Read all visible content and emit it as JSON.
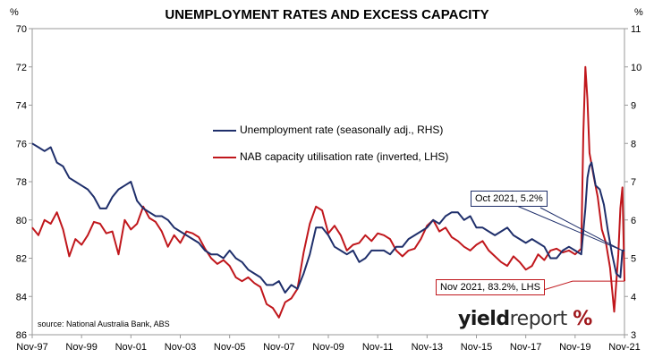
{
  "chart_data": {
    "type": "line",
    "title": "UNEMPLOYMENT RATES AND EXCESS CAPACITY",
    "left_unit": "%",
    "right_unit": "%",
    "source": "source: National Australia Bank, ABS",
    "brand": {
      "part1": "yield",
      "part2": "report",
      "symbol": "%"
    },
    "x_ticks": [
      "Nov-97",
      "Nov-99",
      "Nov-01",
      "Nov-03",
      "Nov-05",
      "Nov-07",
      "Nov-09",
      "Nov-11",
      "Nov-13",
      "Nov-15",
      "Nov-17",
      "Nov-19",
      "Nov-21"
    ],
    "x_range": [
      "1997-11",
      "2021-11"
    ],
    "left_axis": {
      "label": "%",
      "range": [
        70,
        86
      ],
      "inverted": true,
      "ticks": [
        "70",
        "72",
        "74",
        "76",
        "78",
        "80",
        "82",
        "84",
        "86"
      ]
    },
    "right_axis": {
      "label": "%",
      "range": [
        3,
        11
      ],
      "ticks": [
        "3",
        "4",
        "5",
        "6",
        "7",
        "8",
        "9",
        "10",
        "11"
      ]
    },
    "grid": false,
    "series": [
      {
        "name": "Unemployment rate (seasonally adj., RHS)",
        "axis": "right",
        "color": "#1f2f6b",
        "points": [
          [
            "1997-11",
            8.0
          ],
          [
            "1998-02",
            7.9
          ],
          [
            "1998-05",
            7.8
          ],
          [
            "1998-08",
            7.9
          ],
          [
            "1998-11",
            7.5
          ],
          [
            "1999-02",
            7.4
          ],
          [
            "1999-05",
            7.1
          ],
          [
            "1999-08",
            7.0
          ],
          [
            "1999-11",
            6.9
          ],
          [
            "2000-02",
            6.8
          ],
          [
            "2000-05",
            6.6
          ],
          [
            "2000-08",
            6.3
          ],
          [
            "2000-11",
            6.3
          ],
          [
            "2001-02",
            6.6
          ],
          [
            "2001-05",
            6.8
          ],
          [
            "2001-08",
            6.9
          ],
          [
            "2001-11",
            7.0
          ],
          [
            "2002-02",
            6.5
          ],
          [
            "2002-05",
            6.3
          ],
          [
            "2002-08",
            6.2
          ],
          [
            "2002-11",
            6.1
          ],
          [
            "2003-02",
            6.1
          ],
          [
            "2003-05",
            6.0
          ],
          [
            "2003-08",
            5.8
          ],
          [
            "2003-11",
            5.7
          ],
          [
            "2004-02",
            5.6
          ],
          [
            "2004-05",
            5.5
          ],
          [
            "2004-08",
            5.4
          ],
          [
            "2004-11",
            5.2
          ],
          [
            "2005-02",
            5.1
          ],
          [
            "2005-05",
            5.1
          ],
          [
            "2005-08",
            5.0
          ],
          [
            "2005-11",
            5.2
          ],
          [
            "2006-02",
            5.0
          ],
          [
            "2006-05",
            4.9
          ],
          [
            "2006-08",
            4.7
          ],
          [
            "2006-11",
            4.6
          ],
          [
            "2007-02",
            4.5
          ],
          [
            "2007-05",
            4.3
          ],
          [
            "2007-08",
            4.3
          ],
          [
            "2007-11",
            4.4
          ],
          [
            "2008-02",
            4.1
          ],
          [
            "2008-05",
            4.3
          ],
          [
            "2008-08",
            4.2
          ],
          [
            "2008-11",
            4.6
          ],
          [
            "2009-02",
            5.1
          ],
          [
            "2009-05",
            5.8
          ],
          [
            "2009-08",
            5.8
          ],
          [
            "2009-11",
            5.6
          ],
          [
            "2010-02",
            5.3
          ],
          [
            "2010-05",
            5.2
          ],
          [
            "2010-08",
            5.1
          ],
          [
            "2010-11",
            5.2
          ],
          [
            "2011-02",
            4.9
          ],
          [
            "2011-05",
            5.0
          ],
          [
            "2011-08",
            5.2
          ],
          [
            "2011-11",
            5.2
          ],
          [
            "2012-02",
            5.2
          ],
          [
            "2012-05",
            5.1
          ],
          [
            "2012-08",
            5.3
          ],
          [
            "2012-11",
            5.3
          ],
          [
            "2013-02",
            5.5
          ],
          [
            "2013-05",
            5.6
          ],
          [
            "2013-08",
            5.7
          ],
          [
            "2013-11",
            5.8
          ],
          [
            "2014-02",
            6.0
          ],
          [
            "2014-05",
            5.9
          ],
          [
            "2014-08",
            6.1
          ],
          [
            "2014-11",
            6.2
          ],
          [
            "2015-02",
            6.2
          ],
          [
            "2015-05",
            6.0
          ],
          [
            "2015-08",
            6.1
          ],
          [
            "2015-11",
            5.8
          ],
          [
            "2016-02",
            5.8
          ],
          [
            "2016-05",
            5.7
          ],
          [
            "2016-08",
            5.6
          ],
          [
            "2016-11",
            5.7
          ],
          [
            "2017-02",
            5.8
          ],
          [
            "2017-05",
            5.6
          ],
          [
            "2017-08",
            5.5
          ],
          [
            "2017-11",
            5.4
          ],
          [
            "2018-02",
            5.5
          ],
          [
            "2018-05",
            5.4
          ],
          [
            "2018-08",
            5.3
          ],
          [
            "2018-11",
            5.0
          ],
          [
            "2019-02",
            5.0
          ],
          [
            "2019-05",
            5.2
          ],
          [
            "2019-08",
            5.3
          ],
          [
            "2019-11",
            5.2
          ],
          [
            "2020-02",
            5.1
          ],
          [
            "2020-04",
            6.3
          ],
          [
            "2020-05",
            7.1
          ],
          [
            "2020-06",
            7.4
          ],
          [
            "2020-07",
            7.5
          ],
          [
            "2020-09",
            6.9
          ],
          [
            "2020-11",
            6.8
          ],
          [
            "2021-01",
            6.4
          ],
          [
            "2021-03",
            5.7
          ],
          [
            "2021-05",
            5.1
          ],
          [
            "2021-07",
            4.6
          ],
          [
            "2021-09",
            4.5
          ],
          [
            "2021-10",
            5.2
          ],
          [
            "2021-11",
            5.2
          ]
        ]
      },
      {
        "name": "NAB capacity utilisation rate (inverted, LHS)",
        "axis": "left",
        "color": "#c0171c",
        "points": [
          [
            "1997-11",
            80.4
          ],
          [
            "1998-02",
            80.8
          ],
          [
            "1998-05",
            80.0
          ],
          [
            "1998-08",
            80.2
          ],
          [
            "1998-11",
            79.6
          ],
          [
            "1999-02",
            80.5
          ],
          [
            "1999-05",
            81.9
          ],
          [
            "1999-08",
            81.0
          ],
          [
            "1999-11",
            81.3
          ],
          [
            "2000-02",
            80.8
          ],
          [
            "2000-05",
            80.1
          ],
          [
            "2000-08",
            80.2
          ],
          [
            "2000-11",
            80.7
          ],
          [
            "2001-02",
            80.6
          ],
          [
            "2001-05",
            81.8
          ],
          [
            "2001-08",
            80.0
          ],
          [
            "2001-11",
            80.5
          ],
          [
            "2002-02",
            80.2
          ],
          [
            "2002-05",
            79.3
          ],
          [
            "2002-08",
            79.9
          ],
          [
            "2002-11",
            80.1
          ],
          [
            "2003-02",
            80.6
          ],
          [
            "2003-05",
            81.4
          ],
          [
            "2003-08",
            80.8
          ],
          [
            "2003-11",
            81.2
          ],
          [
            "2004-02",
            80.6
          ],
          [
            "2004-05",
            80.7
          ],
          [
            "2004-08",
            80.9
          ],
          [
            "2004-11",
            81.5
          ],
          [
            "2005-02",
            82.0
          ],
          [
            "2005-05",
            82.3
          ],
          [
            "2005-08",
            82.1
          ],
          [
            "2005-11",
            82.4
          ],
          [
            "2006-02",
            83.0
          ],
          [
            "2006-05",
            83.2
          ],
          [
            "2006-08",
            83.0
          ],
          [
            "2006-11",
            83.3
          ],
          [
            "2007-02",
            83.5
          ],
          [
            "2007-05",
            84.4
          ],
          [
            "2007-08",
            84.6
          ],
          [
            "2007-11",
            85.1
          ],
          [
            "2008-02",
            84.3
          ],
          [
            "2008-05",
            84.1
          ],
          [
            "2008-08",
            83.6
          ],
          [
            "2008-11",
            81.7
          ],
          [
            "2009-02",
            80.2
          ],
          [
            "2009-05",
            79.3
          ],
          [
            "2009-08",
            79.5
          ],
          [
            "2009-11",
            80.7
          ],
          [
            "2010-02",
            80.3
          ],
          [
            "2010-05",
            80.8
          ],
          [
            "2010-08",
            81.6
          ],
          [
            "2010-11",
            81.3
          ],
          [
            "2011-02",
            81.2
          ],
          [
            "2011-05",
            80.8
          ],
          [
            "2011-08",
            81.1
          ],
          [
            "2011-11",
            80.7
          ],
          [
            "2012-02",
            80.8
          ],
          [
            "2012-05",
            81.0
          ],
          [
            "2012-08",
            81.6
          ],
          [
            "2012-11",
            81.9
          ],
          [
            "2013-02",
            81.6
          ],
          [
            "2013-05",
            81.5
          ],
          [
            "2013-08",
            81.0
          ],
          [
            "2013-11",
            80.3
          ],
          [
            "2014-02",
            80.0
          ],
          [
            "2014-05",
            80.6
          ],
          [
            "2014-08",
            80.4
          ],
          [
            "2014-11",
            80.9
          ],
          [
            "2015-02",
            81.1
          ],
          [
            "2015-05",
            81.4
          ],
          [
            "2015-08",
            81.6
          ],
          [
            "2015-11",
            81.3
          ],
          [
            "2016-02",
            81.1
          ],
          [
            "2016-05",
            81.6
          ],
          [
            "2016-08",
            81.9
          ],
          [
            "2016-11",
            82.2
          ],
          [
            "2017-02",
            82.4
          ],
          [
            "2017-05",
            81.9
          ],
          [
            "2017-08",
            82.2
          ],
          [
            "2017-11",
            82.6
          ],
          [
            "2018-02",
            82.4
          ],
          [
            "2018-05",
            81.8
          ],
          [
            "2018-08",
            82.1
          ],
          [
            "2018-11",
            81.6
          ],
          [
            "2019-02",
            81.5
          ],
          [
            "2019-05",
            81.7
          ],
          [
            "2019-08",
            81.6
          ],
          [
            "2019-11",
            81.8
          ],
          [
            "2020-02",
            81.5
          ],
          [
            "2020-03",
            75.5
          ],
          [
            "2020-04",
            72.0
          ],
          [
            "2020-05",
            73.7
          ],
          [
            "2020-06",
            76.5
          ],
          [
            "2020-08",
            77.7
          ],
          [
            "2020-10",
            78.8
          ],
          [
            "2020-12",
            80.5
          ],
          [
            "2021-02",
            81.2
          ],
          [
            "2021-04",
            82.5
          ],
          [
            "2021-06",
            84.8
          ],
          [
            "2021-07",
            83.3
          ],
          [
            "2021-08",
            81.8
          ],
          [
            "2021-09",
            79.4
          ],
          [
            "2021-10",
            78.3
          ],
          [
            "2021-11",
            83.2
          ]
        ]
      }
    ],
    "annotations": [
      {
        "text": "Oct 2021, 5.2%",
        "series": "Unemployment rate (seasonally adj., RHS)",
        "date": "2021-10",
        "axis": "right",
        "value": 5.2
      },
      {
        "text": "Nov 2021, 83.2%, LHS",
        "series": "NAB capacity utilisation rate (inverted, LHS)",
        "date": "2021-11",
        "axis": "left",
        "value": 83.2
      }
    ]
  }
}
